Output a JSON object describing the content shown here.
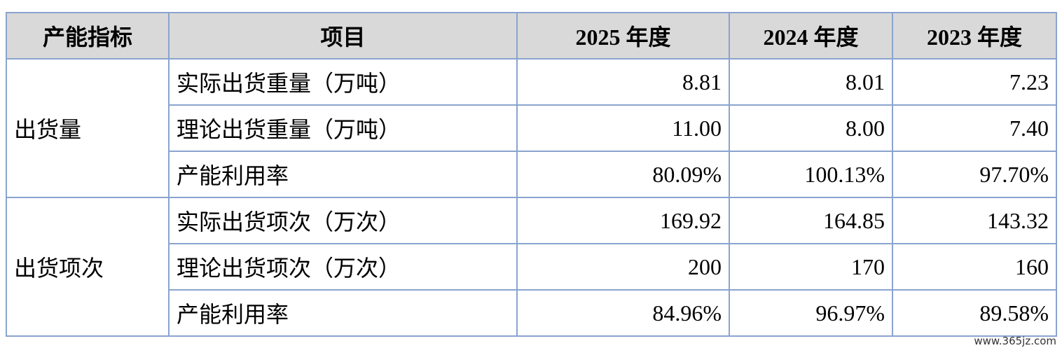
{
  "table": {
    "header": [
      "产能指标",
      "项目",
      "2025 年度",
      "2024 年度",
      "2023 年度"
    ],
    "groups": [
      {
        "label": "出货量",
        "rows": [
          [
            "实际出货重量（万吨）",
            "8.81",
            "8.01",
            "7.23"
          ],
          [
            "理论出货重量（万吨）",
            "11.00",
            "8.00",
            "7.40"
          ],
          [
            "产能利用率",
            "80.09%",
            "100.13%",
            "97.70%"
          ]
        ]
      },
      {
        "label": "出货项次",
        "rows": [
          [
            "实际出货项次（万次）",
            "169.92",
            "164.85",
            "143.32"
          ],
          [
            "理论出货项次（万次）",
            "200",
            "170",
            "160"
          ],
          [
            "产能利用率",
            "84.96%",
            "96.97%",
            "89.58%"
          ]
        ]
      }
    ]
  },
  "watermark": "www.365jz.com"
}
